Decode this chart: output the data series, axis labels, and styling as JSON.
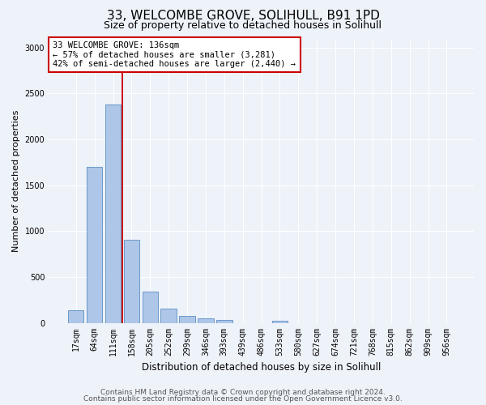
{
  "title": "33, WELCOMBE GROVE, SOLIHULL, B91 1PD",
  "subtitle": "Size of property relative to detached houses in Solihull",
  "xlabel": "Distribution of detached houses by size in Solihull",
  "ylabel": "Number of detached properties",
  "categories": [
    "17sqm",
    "64sqm",
    "111sqm",
    "158sqm",
    "205sqm",
    "252sqm",
    "299sqm",
    "346sqm",
    "393sqm",
    "439sqm",
    "486sqm",
    "533sqm",
    "580sqm",
    "627sqm",
    "674sqm",
    "721sqm",
    "768sqm",
    "815sqm",
    "862sqm",
    "909sqm",
    "956sqm"
  ],
  "values": [
    140,
    1700,
    2380,
    910,
    340,
    155,
    75,
    50,
    30,
    0,
    0,
    25,
    0,
    0,
    0,
    0,
    0,
    0,
    0,
    0,
    0
  ],
  "bar_color": "#aec6e8",
  "bar_edge_color": "#5a8fc2",
  "vline_color": "#cc0000",
  "annotation_text": "33 WELCOMBE GROVE: 136sqm\n← 57% of detached houses are smaller (3,281)\n42% of semi-detached houses are larger (2,440) →",
  "annotation_box_color": "#ffffff",
  "annotation_box_edge_color": "#cc0000",
  "ylim": [
    0,
    3100
  ],
  "yticks": [
    0,
    500,
    1000,
    1500,
    2000,
    2500,
    3000
  ],
  "footer_line1": "Contains HM Land Registry data © Crown copyright and database right 2024.",
  "footer_line2": "Contains public sector information licensed under the Open Government Licence v3.0.",
  "bg_color": "#eef2f9",
  "plot_bg_color": "#eef2f9",
  "title_fontsize": 11,
  "subtitle_fontsize": 9,
  "label_fontsize": 8,
  "tick_fontsize": 7,
  "footer_fontsize": 6.5,
  "annotation_fontsize": 7.5
}
